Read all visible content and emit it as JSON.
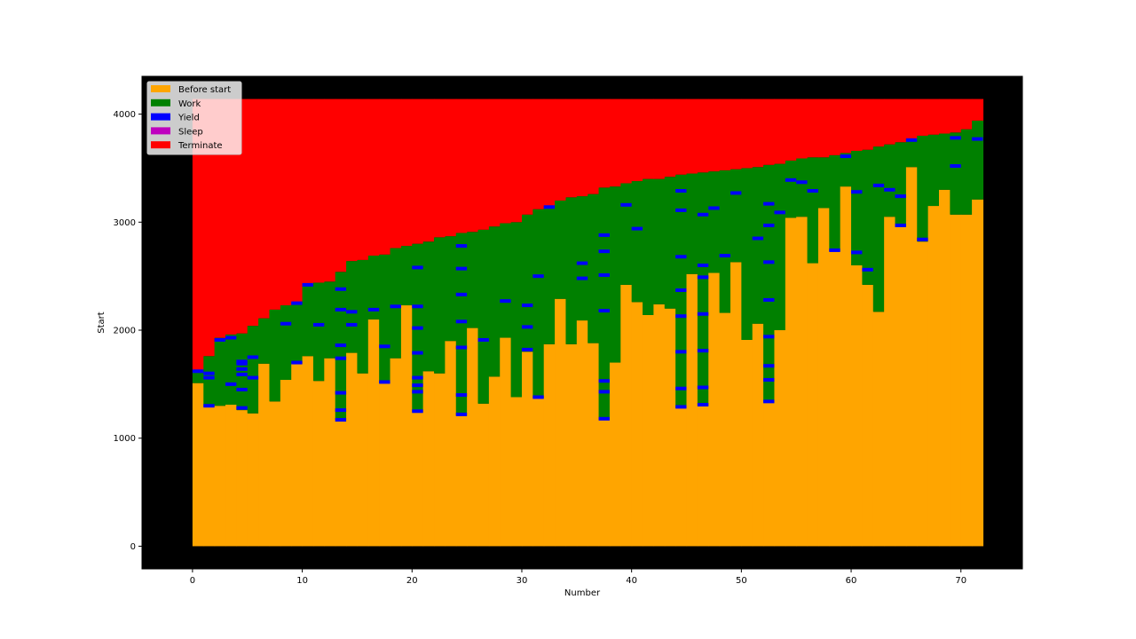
{
  "chart_data": {
    "type": "bar",
    "title": "",
    "xlabel": "Number",
    "ylabel": "Start",
    "xlim": [
      -4.6,
      75.6
    ],
    "ylim": [
      -210,
      4350
    ],
    "background": "#000000",
    "xticks": [
      0,
      10,
      20,
      30,
      40,
      50,
      60,
      70
    ],
    "yticks": [
      0,
      1000,
      2000,
      3000,
      4000
    ],
    "legend": {
      "placement": "top-left",
      "entries": [
        {
          "label": "Before start",
          "color": "#ffa500"
        },
        {
          "label": "Work",
          "color": "#008000"
        },
        {
          "label": "Yield",
          "color": "#0000ff"
        },
        {
          "label": "Sleep",
          "color": "#bf00bf"
        },
        {
          "label": "Terminate",
          "color": "#ff0000"
        }
      ]
    },
    "terminate_end": 4140,
    "x": [
      0,
      1,
      2,
      3,
      4,
      5,
      6,
      7,
      8,
      9,
      10,
      11,
      12,
      13,
      14,
      15,
      16,
      17,
      18,
      19,
      20,
      21,
      22,
      23,
      24,
      25,
      26,
      27,
      28,
      29,
      30,
      31,
      32,
      33,
      34,
      35,
      36,
      37,
      38,
      39,
      40,
      41,
      42,
      43,
      44,
      45,
      46,
      47,
      48,
      49,
      50,
      51,
      52,
      53,
      54,
      55,
      56,
      57,
      58,
      59,
      60,
      61,
      62,
      63,
      64,
      65,
      66,
      67,
      68,
      69,
      70,
      71
    ],
    "before_start": [
      1510,
      1290,
      1300,
      1310,
      1260,
      1230,
      1690,
      1340,
      1540,
      1690,
      1760,
      1530,
      1740,
      1170,
      1790,
      1600,
      2100,
      1510,
      1740,
      2230,
      1240,
      1620,
      1600,
      1900,
      1210,
      2020,
      1320,
      1570,
      1930,
      1380,
      1800,
      1370,
      1870,
      2290,
      1870,
      2090,
      1880,
      1170,
      1700,
      2420,
      2260,
      2140,
      2240,
      2200,
      1280,
      2520,
      1300,
      2530,
      2160,
      2630,
      1910,
      2060,
      1330,
      2000,
      3040,
      3050,
      2620,
      3130,
      2730,
      3330,
      2600,
      2420,
      2170,
      3050,
      2960,
      3510,
      2820,
      3150,
      3300,
      3070,
      3070,
      3210
    ],
    "work_end": [
      1630,
      1760,
      1930,
      1960,
      1970,
      2040,
      2110,
      2190,
      2230,
      2260,
      2430,
      2440,
      2450,
      2540,
      2640,
      2650,
      2690,
      2700,
      2760,
      2780,
      2800,
      2820,
      2860,
      2870,
      2900,
      2910,
      2930,
      2960,
      2990,
      3000,
      3070,
      3120,
      3150,
      3200,
      3230,
      3240,
      3260,
      3320,
      3330,
      3360,
      3380,
      3400,
      3400,
      3420,
      3440,
      3450,
      3460,
      3470,
      3480,
      3490,
      3500,
      3510,
      3530,
      3540,
      3570,
      3590,
      3600,
      3600,
      3620,
      3640,
      3660,
      3670,
      3700,
      3720,
      3740,
      3770,
      3800,
      3810,
      3820,
      3830,
      3860,
      3940
    ],
    "yields": [
      [
        0,
        1620
      ],
      [
        1,
        1600
      ],
      [
        1,
        1560
      ],
      [
        1,
        1300
      ],
      [
        2,
        1910
      ],
      [
        3,
        1500
      ],
      [
        3,
        1930
      ],
      [
        4,
        1710
      ],
      [
        4,
        1690
      ],
      [
        4,
        1640
      ],
      [
        4,
        1590
      ],
      [
        4,
        1450
      ],
      [
        4,
        1280
      ],
      [
        5,
        1750
      ],
      [
        5,
        1560
      ],
      [
        8,
        2060
      ],
      [
        9,
        1700
      ],
      [
        9,
        2250
      ],
      [
        10,
        2420
      ],
      [
        11,
        2050
      ],
      [
        13,
        2380
      ],
      [
        13,
        2190
      ],
      [
        13,
        1860
      ],
      [
        13,
        1740
      ],
      [
        13,
        1420
      ],
      [
        13,
        1260
      ],
      [
        13,
        1170
      ],
      [
        14,
        2170
      ],
      [
        14,
        2050
      ],
      [
        16,
        2190
      ],
      [
        17,
        1850
      ],
      [
        17,
        1520
      ],
      [
        18,
        2220
      ],
      [
        20,
        2580
      ],
      [
        20,
        2220
      ],
      [
        20,
        2020
      ],
      [
        20,
        1790
      ],
      [
        20,
        1560
      ],
      [
        20,
        1490
      ],
      [
        20,
        1430
      ],
      [
        20,
        1250
      ],
      [
        24,
        2780
      ],
      [
        24,
        2570
      ],
      [
        24,
        2330
      ],
      [
        24,
        2080
      ],
      [
        24,
        1840
      ],
      [
        24,
        1400
      ],
      [
        24,
        1220
      ],
      [
        26,
        1910
      ],
      [
        28,
        2270
      ],
      [
        30,
        2230
      ],
      [
        30,
        2030
      ],
      [
        30,
        1820
      ],
      [
        31,
        2500
      ],
      [
        31,
        1380
      ],
      [
        32,
        3140
      ],
      [
        35,
        2620
      ],
      [
        35,
        2480
      ],
      [
        37,
        2880
      ],
      [
        37,
        2730
      ],
      [
        37,
        2510
      ],
      [
        37,
        2180
      ],
      [
        37,
        1530
      ],
      [
        37,
        1430
      ],
      [
        37,
        1180
      ],
      [
        39,
        3160
      ],
      [
        40,
        2940
      ],
      [
        44,
        3290
      ],
      [
        44,
        3110
      ],
      [
        44,
        2680
      ],
      [
        44,
        2370
      ],
      [
        44,
        2130
      ],
      [
        44,
        1800
      ],
      [
        44,
        1460
      ],
      [
        44,
        1290
      ],
      [
        46,
        3070
      ],
      [
        46,
        2600
      ],
      [
        46,
        2490
      ],
      [
        46,
        2150
      ],
      [
        46,
        1810
      ],
      [
        46,
        1470
      ],
      [
        46,
        1310
      ],
      [
        47,
        3130
      ],
      [
        48,
        2690
      ],
      [
        49,
        3270
      ],
      [
        51,
        2850
      ],
      [
        52,
        3170
      ],
      [
        52,
        2970
      ],
      [
        52,
        2630
      ],
      [
        52,
        2280
      ],
      [
        52,
        1940
      ],
      [
        52,
        1670
      ],
      [
        52,
        1540
      ],
      [
        52,
        1340
      ],
      [
        53,
        3090
      ],
      [
        54,
        3390
      ],
      [
        55,
        3370
      ],
      [
        56,
        3290
      ],
      [
        58,
        2740
      ],
      [
        59,
        3610
      ],
      [
        60,
        3280
      ],
      [
        60,
        2720
      ],
      [
        61,
        2560
      ],
      [
        62,
        3340
      ],
      [
        63,
        3300
      ],
      [
        64,
        3240
      ],
      [
        64,
        2970
      ],
      [
        65,
        3760
      ],
      [
        66,
        2840
      ],
      [
        69,
        3780
      ],
      [
        69,
        3520
      ],
      [
        71,
        3770
      ]
    ]
  }
}
